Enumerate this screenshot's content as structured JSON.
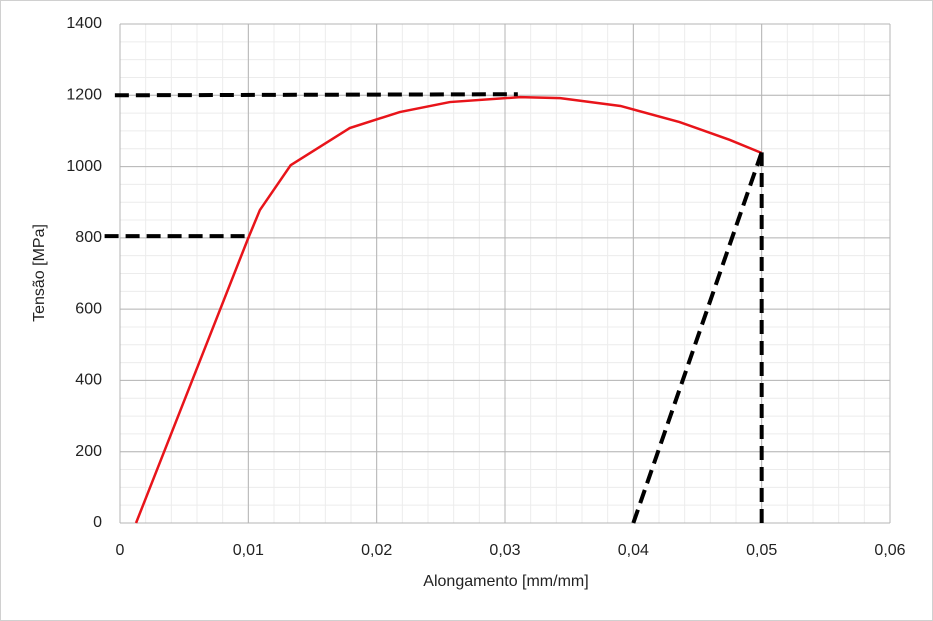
{
  "chart_data": {
    "type": "line",
    "x_label": "Alongamento [mm/mm]",
    "y_label": "Tensão [MPa]",
    "xlim": [
      0,
      0.06
    ],
    "ylim": [
      0,
      1400
    ],
    "xticks": [
      0,
      {
        "value": 0.01,
        "label": "0,01"
      },
      {
        "value": 0.02,
        "label": "0,02"
      },
      {
        "value": 0.03,
        "label": "0,03"
      },
      {
        "value": 0.04,
        "label": "0,04"
      },
      {
        "value": 0.05,
        "label": "0,05"
      },
      {
        "value": 0.06,
        "label": "0,06"
      }
    ],
    "yticks": [
      0,
      200,
      400,
      600,
      800,
      1000,
      1200,
      1400
    ],
    "grid": true,
    "minor_grid_step": {
      "x": 0.002,
      "y": 50
    },
    "series": [
      {
        "color": "#e8141a",
        "dash": false,
        "x": [
          0.00125,
          0.01,
          0.0109,
          0.0133,
          0.0179,
          0.0218,
          0.0257,
          0.0312,
          0.0343,
          0.039,
          0.0436,
          0.0475,
          0.05
        ],
        "values": [
          0,
          800,
          878,
          1004,
          1108,
          1153,
          1181,
          1195,
          1192,
          1170,
          1125,
          1075,
          1038
        ]
      },
      {
        "color": "#000000",
        "dash": true,
        "x": [
          -0.0004,
          0.031
        ],
        "values": [
          1200,
          1203
        ]
      },
      {
        "color": "#000000",
        "dash": true,
        "x": [
          -0.0012,
          0.01
        ],
        "values": [
          805,
          805
        ]
      },
      {
        "color": "#000000",
        "dash": true,
        "x": [
          0.05,
          0.05
        ],
        "values": [
          0,
          1040
        ]
      },
      {
        "color": "#000000",
        "dash": true,
        "x": [
          0.04,
          0.05
        ],
        "values": [
          0,
          1040
        ]
      }
    ]
  }
}
